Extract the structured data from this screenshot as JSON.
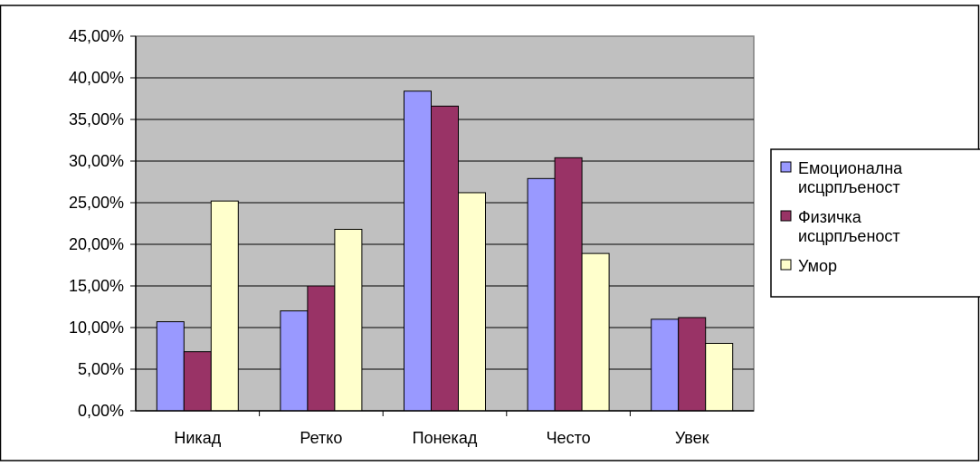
{
  "chart_data": {
    "type": "bar",
    "categories": [
      "Никад",
      "Ретко",
      "Понекад",
      "Често",
      "Увек"
    ],
    "series": [
      {
        "name": "Емоционална исцрпљеност",
        "color": "#9999ff",
        "values": [
          10.7,
          12.0,
          38.4,
          27.9,
          11.0
        ]
      },
      {
        "name": "Физичка исцрпљеност",
        "color": "#993366",
        "values": [
          7.1,
          15.0,
          36.6,
          30.4,
          11.2
        ]
      },
      {
        "name": "Умор",
        "color": "#ffffcc",
        "values": [
          25.2,
          21.8,
          26.2,
          18.9,
          8.1
        ]
      }
    ],
    "ylim": [
      0,
      45
    ],
    "yticks": [
      "0,00%",
      "5,00%",
      "10,00%",
      "15,00%",
      "20,00%",
      "25,00%",
      "30,00%",
      "35,00%",
      "40,00%",
      "45,00%"
    ],
    "legend": {
      "placement": "right",
      "entries": [
        {
          "lines": [
            "Емоционална",
            "исцрпљеност"
          ]
        },
        {
          "lines": [
            "Физичка",
            "исцрпљеност"
          ]
        },
        {
          "lines": [
            "Умор"
          ]
        }
      ]
    },
    "plot_background": "#c0c0c0",
    "grid": true
  }
}
